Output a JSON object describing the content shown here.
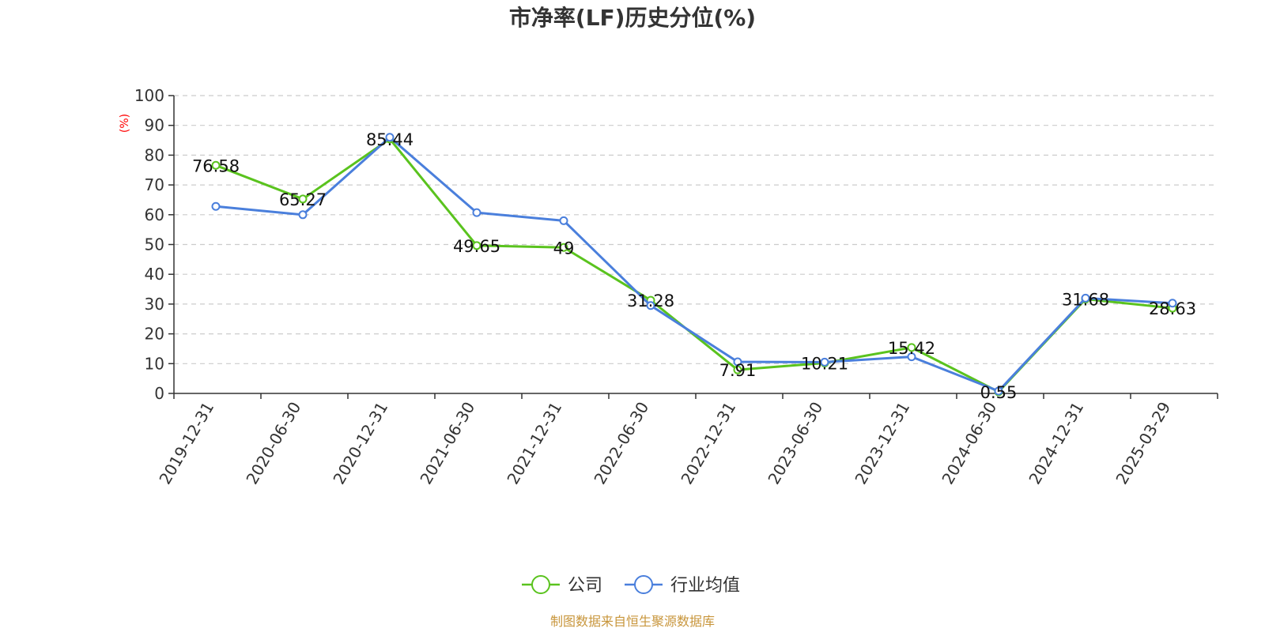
{
  "chart_data": {
    "type": "line",
    "title": "市净率(LF)历史分位(%)",
    "xlabel": "",
    "ylabel": "(%)",
    "categories": [
      "2019-12-31",
      "2020-06-30",
      "2020-12-31",
      "2021-06-30",
      "2021-12-31",
      "2022-06-30",
      "2022-12-31",
      "2023-06-30",
      "2023-12-31",
      "2024-06-30",
      "2024-12-31",
      "2025-03-29"
    ],
    "ylim": [
      0,
      100
    ],
    "yticks": [
      0,
      10,
      20,
      30,
      40,
      50,
      60,
      70,
      80,
      90,
      100
    ],
    "grid": true,
    "legend_position": "bottom",
    "series": [
      {
        "name": "公司",
        "color": "#5ac31e",
        "values": [
          76.58,
          65.27,
          85.44,
          49.65,
          49,
          31.28,
          7.91,
          10.21,
          15.42,
          0.55,
          31.68,
          28.63
        ],
        "data_labels": [
          "76.58",
          "65.27",
          "85.44",
          "49.65",
          "49",
          "31.28",
          "7.91",
          "10.21",
          "15.42",
          "0.55",
          "31.68",
          "28.63"
        ]
      },
      {
        "name": "行业均值",
        "color": "#4a7fdc",
        "values": [
          62.8,
          60.0,
          86.0,
          60.7,
          58.0,
          29.5,
          10.6,
          10.5,
          12.3,
          0.8,
          32.0,
          30.3
        ]
      }
    ]
  },
  "source": "制图数据来自恒生聚源数据库",
  "colors": {
    "gridline": "#cccccc",
    "axis": "#333333",
    "ylabel": "#ff0000",
    "source": "#c8963c"
  }
}
